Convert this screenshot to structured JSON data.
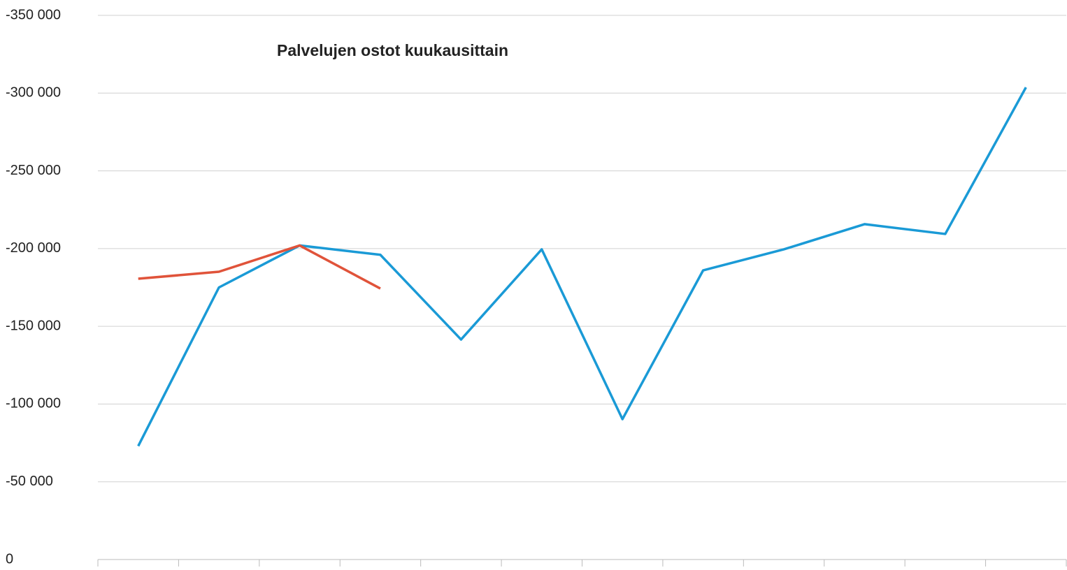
{
  "chart_data": {
    "type": "line",
    "title": "Palvelujen ostot kuukausittain",
    "categories": [
      null,
      null,
      null,
      null,
      null,
      null,
      null,
      null,
      null,
      null,
      null,
      null
    ],
    "series": [
      {
        "color": "#1a9ad6",
        "values": [
          -73000,
          -175000,
          -202000,
          -196000,
          -141500,
          -199500,
          -90300,
          -186000,
          -199500,
          -215700,
          -209400,
          -303700
        ]
      },
      {
        "color": "#e0533a",
        "values": [
          -180600,
          -185100,
          -202000,
          -174300,
          null,
          null,
          null,
          null,
          null,
          null,
          null,
          null
        ]
      }
    ],
    "ylim": [
      0,
      -350000
    ],
    "yticks": [
      0,
      {
        "value": -50000,
        "label": "-50 000"
      },
      {
        "value": -100000,
        "label": "-100 000"
      },
      {
        "value": -150000,
        "label": "-150 000"
      },
      {
        "value": -200000,
        "label": "-200 000"
      },
      {
        "value": -250000,
        "label": "-250 000"
      },
      {
        "value": -300000,
        "label": "-300 000"
      },
      {
        "value": -350000,
        "label": "-350 000"
      }
    ],
    "grid": true
  }
}
